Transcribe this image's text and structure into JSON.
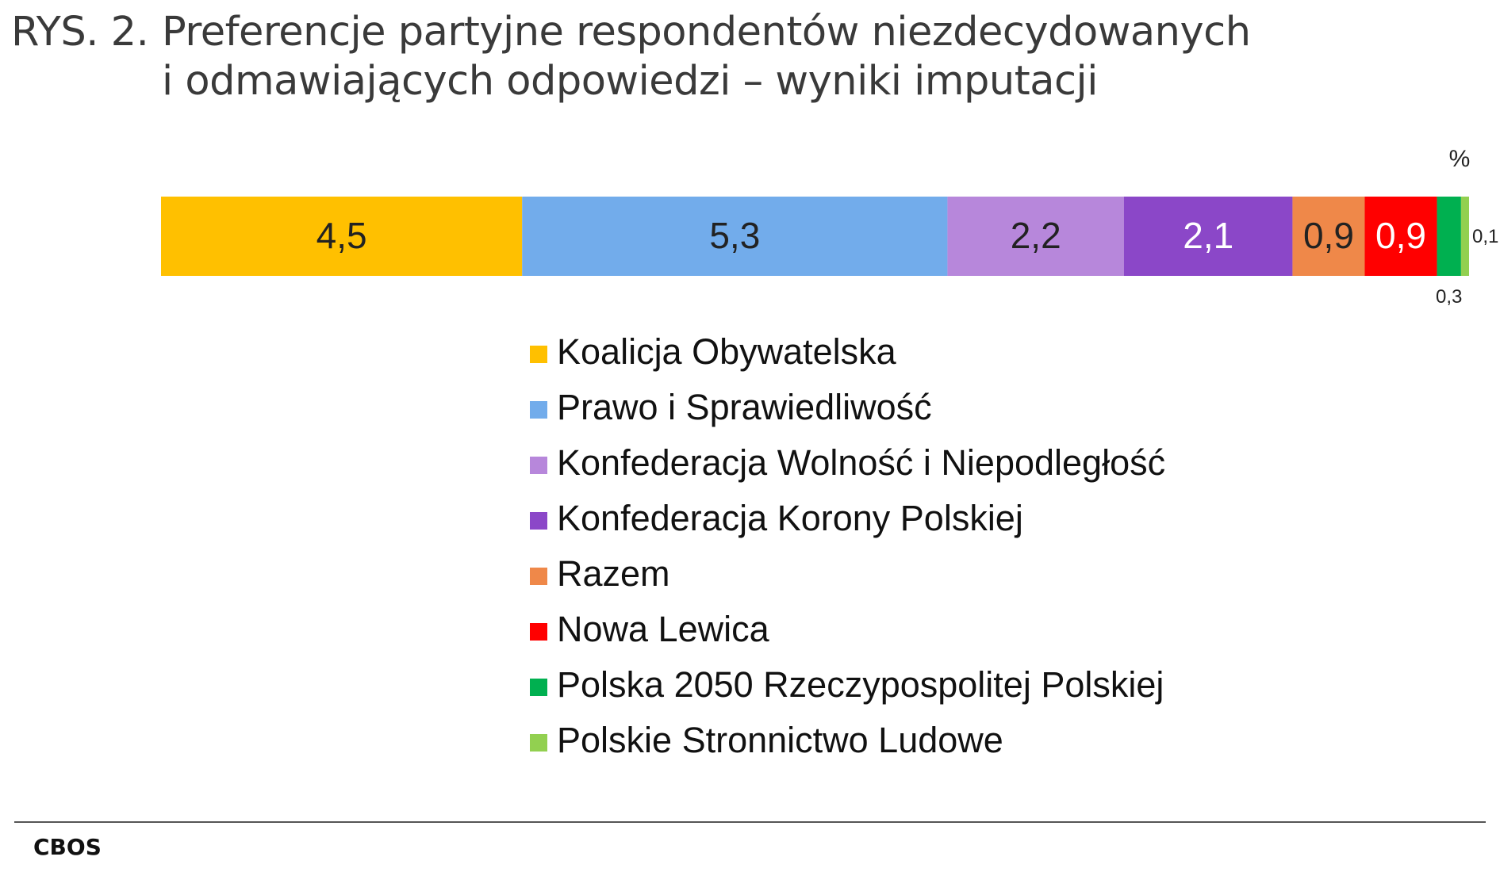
{
  "title": {
    "number": "RYS. 2.",
    "line1": "Preferencje partyjne respondentów niezdecydowanych",
    "line2": "i odmawiających odpowiedzi – wyniki imputacji"
  },
  "source": "CBOS",
  "chart_data": {
    "type": "bar",
    "orientation": "horizontal",
    "stacked": true,
    "unit": "%",
    "legend_position": "bottom",
    "grid": false,
    "series": [
      {
        "name": "Koalicja Obywatelska",
        "value": 4.5,
        "label": "4,5",
        "color": "#FFC000",
        "label_color": "#222222"
      },
      {
        "name": "Prawo i Sprawiedliwość",
        "value": 5.3,
        "label": "5,3",
        "color": "#72ACEB",
        "label_color": "#222222"
      },
      {
        "name": "Konfederacja Wolność i Niepodległość",
        "value": 2.2,
        "label": "2,2",
        "color": "#B787DB",
        "label_color": "#222222"
      },
      {
        "name": "Konfederacja Korony Polskiej",
        "value": 2.1,
        "label": "2,1",
        "color": "#8B47C8",
        "label_color": "#ffffff"
      },
      {
        "name": "Razem",
        "value": 0.9,
        "label": "0,9",
        "color": "#EF8849",
        "label_color": "#222222"
      },
      {
        "name": "Nowa Lewica",
        "value": 0.9,
        "label": "0,9",
        "color": "#FF0000",
        "label_color": "#ffffff"
      },
      {
        "name": "Polska 2050 Rzeczypospolitej Polskiej",
        "value": 0.3,
        "label": "0,3",
        "color": "#00B050",
        "label_color": "#222222",
        "label_outside": "below"
      },
      {
        "name": "Polskie Stronnictwo Ludowe",
        "value": 0.1,
        "label": "0,1",
        "color": "#92D050",
        "label_color": "#222222",
        "label_outside": "right"
      }
    ]
  }
}
